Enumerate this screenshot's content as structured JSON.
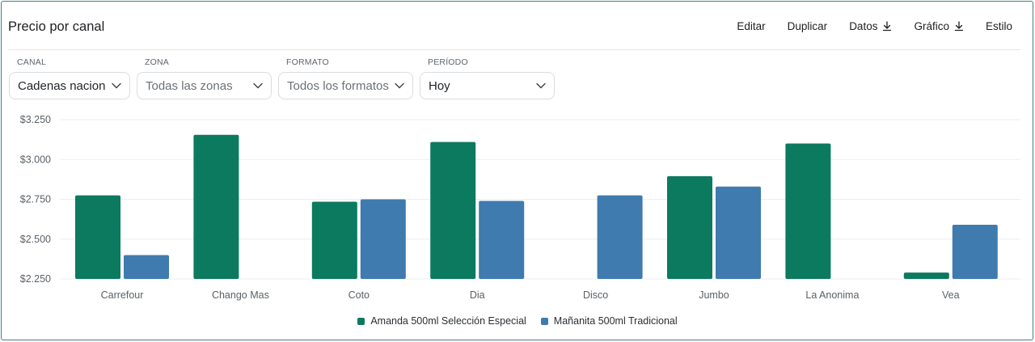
{
  "header": {
    "title": "Precio por canal",
    "actions": [
      {
        "label": "Editar",
        "icon": ""
      },
      {
        "label": "Duplicar",
        "icon": ""
      },
      {
        "label": "Datos",
        "icon": "download-icon"
      },
      {
        "label": "Gráfico",
        "icon": "download-icon"
      },
      {
        "label": "Estilo",
        "icon": ""
      }
    ]
  },
  "filters": {
    "canal": {
      "label": "CANAL",
      "value": "Cadenas nacion"
    },
    "zona": {
      "label": "ZONA",
      "value": "Todas las zonas"
    },
    "formato": {
      "label": "FORMATO",
      "value": "Todos los formatos"
    },
    "periodo": {
      "label": "PERÍODO",
      "value": "Hoy"
    }
  },
  "colors": {
    "series1": "#0c7a5f",
    "series2": "#3f7baf"
  },
  "chart_data": {
    "type": "bar",
    "categories": [
      "Carrefour",
      "Chango Mas",
      "Coto",
      "Dia",
      "Disco",
      "Jumbo",
      "La Anonima",
      "Vea"
    ],
    "series": [
      {
        "name": "Amanda 500ml Selección Especial",
        "values": [
          2775,
          3155,
          2735,
          3110,
          null,
          2895,
          3100,
          2290
        ]
      },
      {
        "name": "Mañanita 500ml Tradicional",
        "values": [
          2400,
          null,
          2750,
          2740,
          2775,
          2830,
          null,
          2590
        ]
      }
    ],
    "yticks": [
      "$3.250",
      "$3.000",
      "$2.750",
      "$2.500",
      "$2.250"
    ],
    "ytick_values": [
      3250,
      3000,
      2750,
      2500,
      2250
    ],
    "ylim": [
      2250,
      3250
    ],
    "grid": true,
    "legend_position": "bottom"
  }
}
